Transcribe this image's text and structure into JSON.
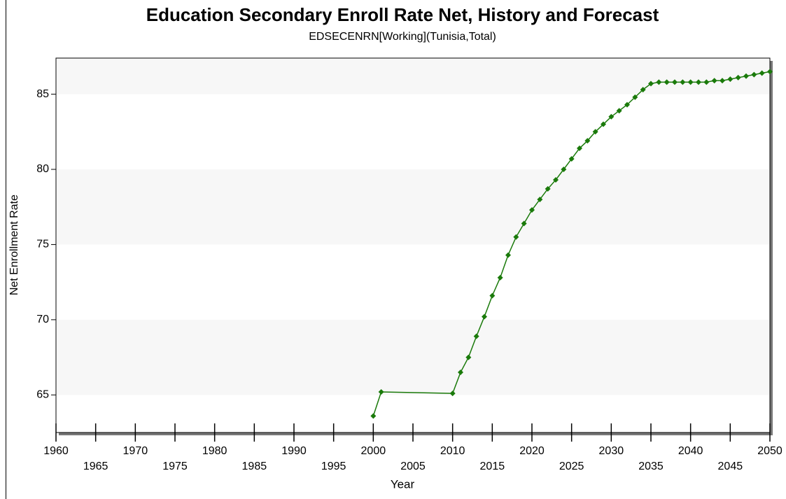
{
  "chart_data": {
    "type": "line",
    "title": "Education Secondary Enroll Rate Net, History and Forecast",
    "subtitle": "EDSECENRN[Working](Tunisia,Total)",
    "x_label": "Year",
    "y_label": "Net Enrollment Rate",
    "color": "#1a7a0a",
    "grid": "bands",
    "x": [
      2000,
      2001,
      2010,
      2011,
      2012,
      2013,
      2014,
      2015,
      2016,
      2017,
      2018,
      2019,
      2020,
      2021,
      2022,
      2023,
      2024,
      2025,
      2026,
      2027,
      2028,
      2029,
      2030,
      2031,
      2032,
      2033,
      2034,
      2035,
      2036,
      2037,
      2038,
      2039,
      2040,
      2041,
      2042,
      2043,
      2044,
      2045,
      2046,
      2047,
      2048,
      2049,
      2050
    ],
    "values": [
      63.6,
      65.2,
      65.1,
      66.5,
      67.5,
      68.9,
      70.2,
      71.6,
      72.8,
      74.3,
      75.5,
      76.4,
      77.3,
      78.0,
      78.7,
      79.3,
      80.0,
      80.7,
      81.4,
      81.9,
      82.5,
      83.0,
      83.5,
      83.9,
      84.3,
      84.8,
      85.3,
      85.7,
      85.8,
      85.8,
      85.8,
      85.8,
      85.8,
      85.8,
      85.8,
      85.9,
      85.9,
      86.0,
      86.1,
      86.2,
      86.3,
      86.4,
      86.5
    ],
    "xlim": [
      1960,
      2050
    ],
    "xticks": [
      1960,
      1965,
      1970,
      1975,
      1980,
      1985,
      1990,
      1995,
      2000,
      2005,
      2010,
      2015,
      2020,
      2025,
      2030,
      2035,
      2040,
      2045,
      2050
    ],
    "ylim": [
      62.5,
      87.4
    ],
    "yticks": [
      65,
      70,
      75,
      80,
      85
    ]
  }
}
